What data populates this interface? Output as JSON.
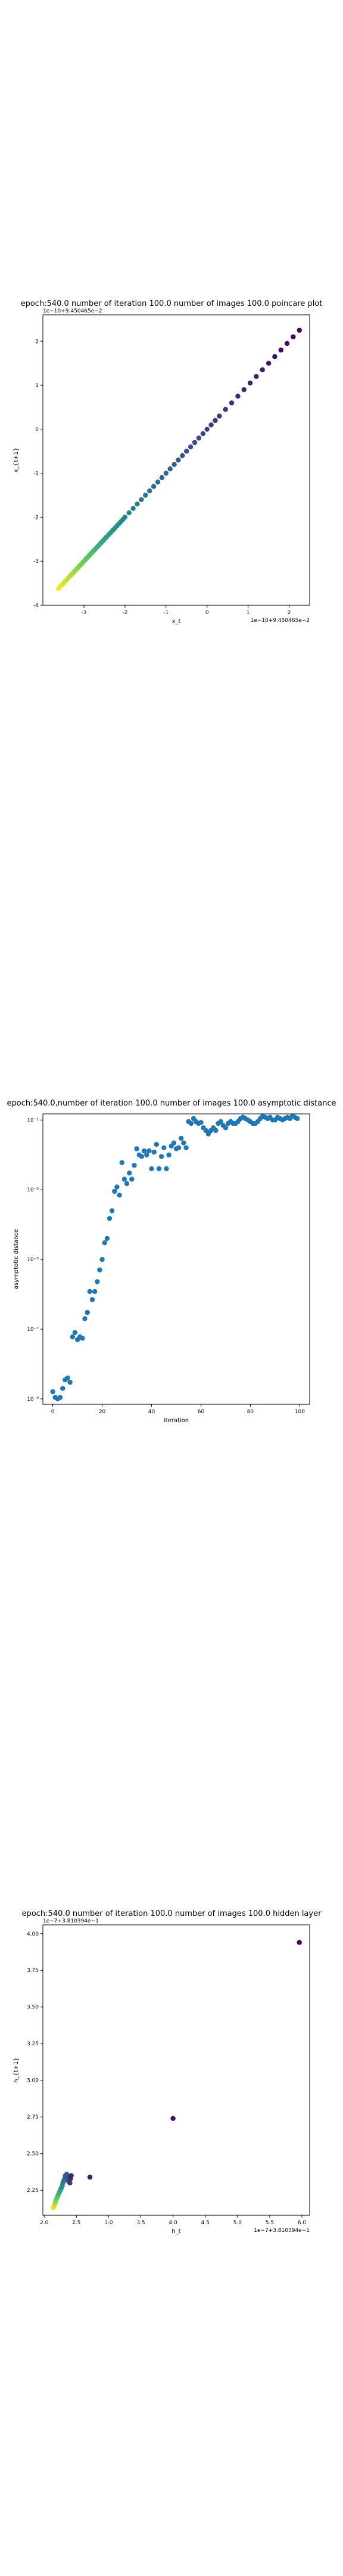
{
  "chart_data": [
    {
      "type": "scatter",
      "title": "epoch:540.0 number of iteration 100.0 number of images 100.0 poincare plot",
      "xlabel": "x_t",
      "ylabel": "x_{t+1}",
      "x_offset_label": "1e−10+9.450465e−2",
      "y_offset_label": "1e−10+9.450465e−2",
      "xlim": [
        -4.0,
        2.5
      ],
      "ylim": [
        -4.0,
        2.6
      ],
      "xticks": [
        -3,
        -2,
        -1,
        0,
        1,
        2
      ],
      "yticks": [
        -4,
        -3,
        -2,
        -1,
        0,
        1,
        2
      ],
      "colormap": "viridis",
      "series": [
        {
          "x": [
            -3.62,
            -3.58,
            -3.55,
            -3.52,
            -3.48,
            -3.45,
            -3.42,
            -3.38,
            -3.35,
            -3.32,
            -3.28,
            -3.25,
            -3.22,
            -3.18,
            -3.15,
            -3.12,
            -3.08,
            -3.05,
            -3.02,
            -2.98,
            -2.95,
            -2.92,
            -2.88,
            -2.85,
            -2.82,
            -2.78,
            -2.75,
            -2.72,
            -2.68,
            -2.65,
            -2.62,
            -2.58,
            -2.55,
            -2.52,
            -2.48,
            -2.45,
            -2.4,
            -2.35,
            -2.3,
            -2.25,
            -2.2,
            -2.15,
            -2.1,
            -2.05,
            -2.0,
            -1.9,
            -1.8,
            -1.7,
            -1.6,
            -1.5,
            -1.4,
            -1.3,
            -1.2,
            -1.1,
            -1.0,
            -0.9,
            -0.8,
            -0.7,
            -0.6,
            -0.5,
            -0.4,
            -0.3,
            -0.2,
            -0.1,
            0.0,
            0.1,
            0.2,
            0.3,
            0.45,
            0.6,
            0.75,
            0.9,
            1.05,
            1.2,
            1.35,
            1.5,
            1.65,
            1.8,
            1.95,
            2.1,
            2.25
          ],
          "y": [
            -3.62,
            -3.58,
            -3.55,
            -3.52,
            -3.48,
            -3.45,
            -3.42,
            -3.38,
            -3.35,
            -3.32,
            -3.28,
            -3.25,
            -3.22,
            -3.18,
            -3.15,
            -3.12,
            -3.08,
            -3.05,
            -3.02,
            -2.98,
            -2.95,
            -2.92,
            -2.88,
            -2.85,
            -2.82,
            -2.78,
            -2.75,
            -2.72,
            -2.68,
            -2.65,
            -2.62,
            -2.58,
            -2.55,
            -2.52,
            -2.48,
            -2.45,
            -2.4,
            -2.35,
            -2.3,
            -2.25,
            -2.2,
            -2.15,
            -2.1,
            -2.05,
            -2.0,
            -1.9,
            -1.8,
            -1.7,
            -1.6,
            -1.5,
            -1.4,
            -1.3,
            -1.2,
            -1.1,
            -1.0,
            -0.9,
            -0.8,
            -0.7,
            -0.6,
            -0.5,
            -0.4,
            -0.3,
            -0.2,
            -0.1,
            0.0,
            0.1,
            0.2,
            0.3,
            0.45,
            0.6,
            0.75,
            0.9,
            1.05,
            1.2,
            1.35,
            1.5,
            1.65,
            1.8,
            1.95,
            2.1,
            2.25
          ]
        }
      ]
    },
    {
      "type": "scatter",
      "title": "epoch:540.0,number of iteration 100.0  number of images 100.0 asymptotic distance",
      "xlabel": "iteration",
      "ylabel": "asymptotic distance",
      "yscale": "log",
      "xlim": [
        -4,
        104
      ],
      "ylim": [
        7e-10,
        0.15
      ],
      "xticks": [
        0,
        20,
        40,
        60,
        80,
        100
      ],
      "yticks": [
        1e-09,
        1e-07,
        1e-05,
        0.001,
        0.1
      ],
      "ytick_labels": [
        "10⁻⁹",
        "10⁻⁷",
        "10⁻⁵",
        "10⁻³",
        "10⁻¹"
      ],
      "color": "#1f77b4",
      "series": [
        {
          "x": [
            0,
            1,
            2,
            3,
            4,
            5,
            6,
            7,
            8,
            9,
            10,
            11,
            12,
            13,
            14,
            15,
            16,
            17,
            18,
            19,
            20,
            21,
            22,
            23,
            24,
            25,
            26,
            27,
            28,
            29,
            30,
            31,
            32,
            33,
            34,
            35,
            36,
            37,
            38,
            39,
            40,
            41,
            42,
            43,
            44,
            45,
            46,
            47,
            48,
            49,
            50,
            51,
            52,
            53,
            54,
            55,
            56,
            57,
            58,
            59,
            60,
            61,
            62,
            63,
            64,
            65,
            66,
            67,
            68,
            69,
            70,
            71,
            72,
            73,
            74,
            75,
            76,
            77,
            78,
            79,
            80,
            81,
            82,
            83,
            84,
            85,
            86,
            87,
            88,
            89,
            90,
            91,
            92,
            93,
            94,
            95,
            96,
            97,
            98,
            99
          ],
          "y": [
            1.6e-09,
            1.1e-09,
            1e-09,
            1.1e-09,
            2e-09,
            3.5e-09,
            4e-09,
            3e-09,
            6e-08,
            8e-08,
            5e-08,
            6e-08,
            5.5e-08,
            2e-07,
            3e-07,
            1.2e-06,
            7e-07,
            1.2e-06,
            2.3e-06,
            5e-06,
            1e-05,
            3e-05,
            4e-05,
            0.00015,
            0.00025,
            0.0009,
            0.0012,
            0.0007,
            0.006,
            0.002,
            0.0015,
            0.003,
            0.002,
            0.005,
            0.015,
            0.01,
            0.009,
            0.013,
            0.01,
            0.013,
            0.004,
            0.012,
            0.02,
            0.004,
            0.009,
            0.016,
            0.004,
            0.01,
            0.018,
            0.022,
            0.015,
            0.016,
            0.03,
            0.022,
            0.016,
            0.09,
            0.08,
            0.11,
            0.09,
            0.08,
            0.085,
            0.06,
            0.05,
            0.04,
            0.05,
            0.06,
            0.05,
            0.08,
            0.09,
            0.07,
            0.06,
            0.08,
            0.09,
            0.08,
            0.08,
            0.09,
            0.11,
            0.12,
            0.11,
            0.1,
            0.09,
            0.08,
            0.08,
            0.09,
            0.11,
            0.13,
            0.12,
            0.11,
            0.12,
            0.1,
            0.1,
            0.12,
            0.11,
            0.1,
            0.11,
            0.12,
            0.11,
            0.13,
            0.12,
            0.11
          ]
        }
      ]
    },
    {
      "type": "scatter",
      "title": "epoch:540.0 number of iteration 100.0  number of images 100.0 hidden layer",
      "xlabel": "h_t",
      "ylabel": "h_{t+1}",
      "x_offset_label": "1e−7+3.810394e−1",
      "y_offset_label": "1e−7+3.810394e−1",
      "xlim": [
        1.98,
        6.12
      ],
      "ylim": [
        2.08,
        4.06
      ],
      "xticks": [
        2.0,
        2.5,
        3.0,
        3.5,
        4.0,
        4.5,
        5.0,
        5.5,
        6.0
      ],
      "yticks": [
        2.25,
        2.5,
        2.75,
        3.0,
        3.25,
        3.5,
        3.75,
        4.0
      ],
      "colormap": "viridis",
      "series": [
        {
          "x": [
            2.14,
            2.15,
            2.16,
            2.17,
            2.17,
            2.18,
            2.19,
            2.2,
            2.21,
            2.22,
            2.23,
            2.24,
            2.25,
            2.26,
            2.27,
            2.28,
            2.29,
            2.3,
            2.31,
            2.32,
            2.33,
            2.35,
            2.36,
            2.38,
            2.4,
            2.41,
            2.42,
            2.71,
            4.0,
            5.96
          ],
          "y": [
            2.13,
            2.14,
            2.15,
            2.16,
            2.17,
            2.18,
            2.19,
            2.2,
            2.21,
            2.22,
            2.23,
            2.24,
            2.25,
            2.26,
            2.27,
            2.28,
            2.3,
            2.31,
            2.32,
            2.33,
            2.35,
            2.36,
            2.34,
            2.31,
            2.3,
            2.33,
            2.35,
            2.34,
            2.74,
            3.94
          ]
        }
      ]
    }
  ]
}
